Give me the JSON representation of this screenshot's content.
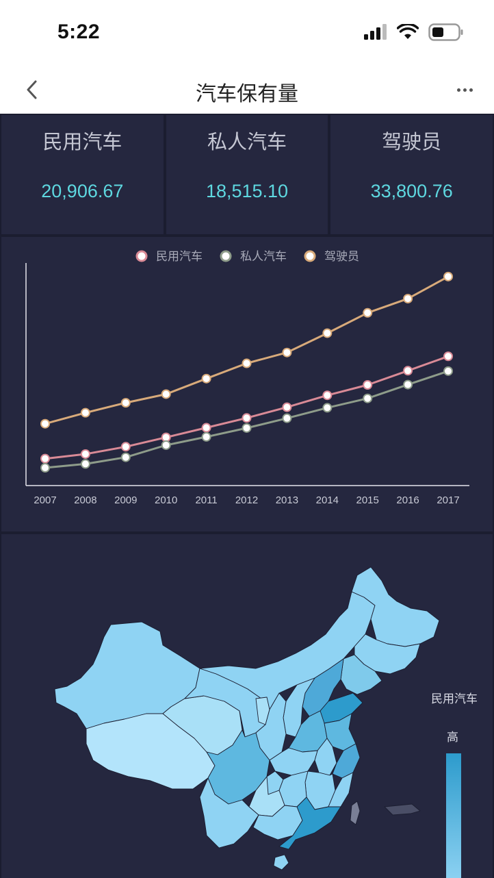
{
  "status_bar": {
    "time": "5:22"
  },
  "nav": {
    "title": "汽车保有量"
  },
  "stats": [
    {
      "label": "民用汽车",
      "value": "20,906.67"
    },
    {
      "label": "私人汽车",
      "value": "18,515.10"
    },
    {
      "label": "驾驶员",
      "value": "33,800.76"
    }
  ],
  "chart_data": {
    "type": "line",
    "x": [
      "2007",
      "2008",
      "2009",
      "2010",
      "2011",
      "2012",
      "2013",
      "2014",
      "2015",
      "2016",
      "2017"
    ],
    "series": [
      {
        "name": "民用汽车",
        "color": "#d98a96",
        "values": [
          4358,
          5100,
          6281,
          7802,
          9356,
          10933,
          12670,
          14598,
          16284,
          18575,
          20907
        ]
      },
      {
        "name": "私人汽车",
        "color": "#8e9c8a",
        "values": [
          2876,
          3501,
          4575,
          6539,
          7872,
          9309,
          10892,
          12584,
          14099,
          16330,
          18515
        ]
      },
      {
        "name": "驾驶员",
        "color": "#d8aa7a",
        "values": [
          10000,
          11780,
          13390,
          14790,
          17300,
          19770,
          21520,
          24650,
          27940,
          30230,
          33801
        ]
      }
    ],
    "ylim": [
      0,
      36000
    ],
    "legend": "top",
    "grid": false
  },
  "map": {
    "legend_title": "民用汽车",
    "legend_high": "高",
    "color_high": "#2d9bcc",
    "color_low": "#a9e0f7"
  }
}
